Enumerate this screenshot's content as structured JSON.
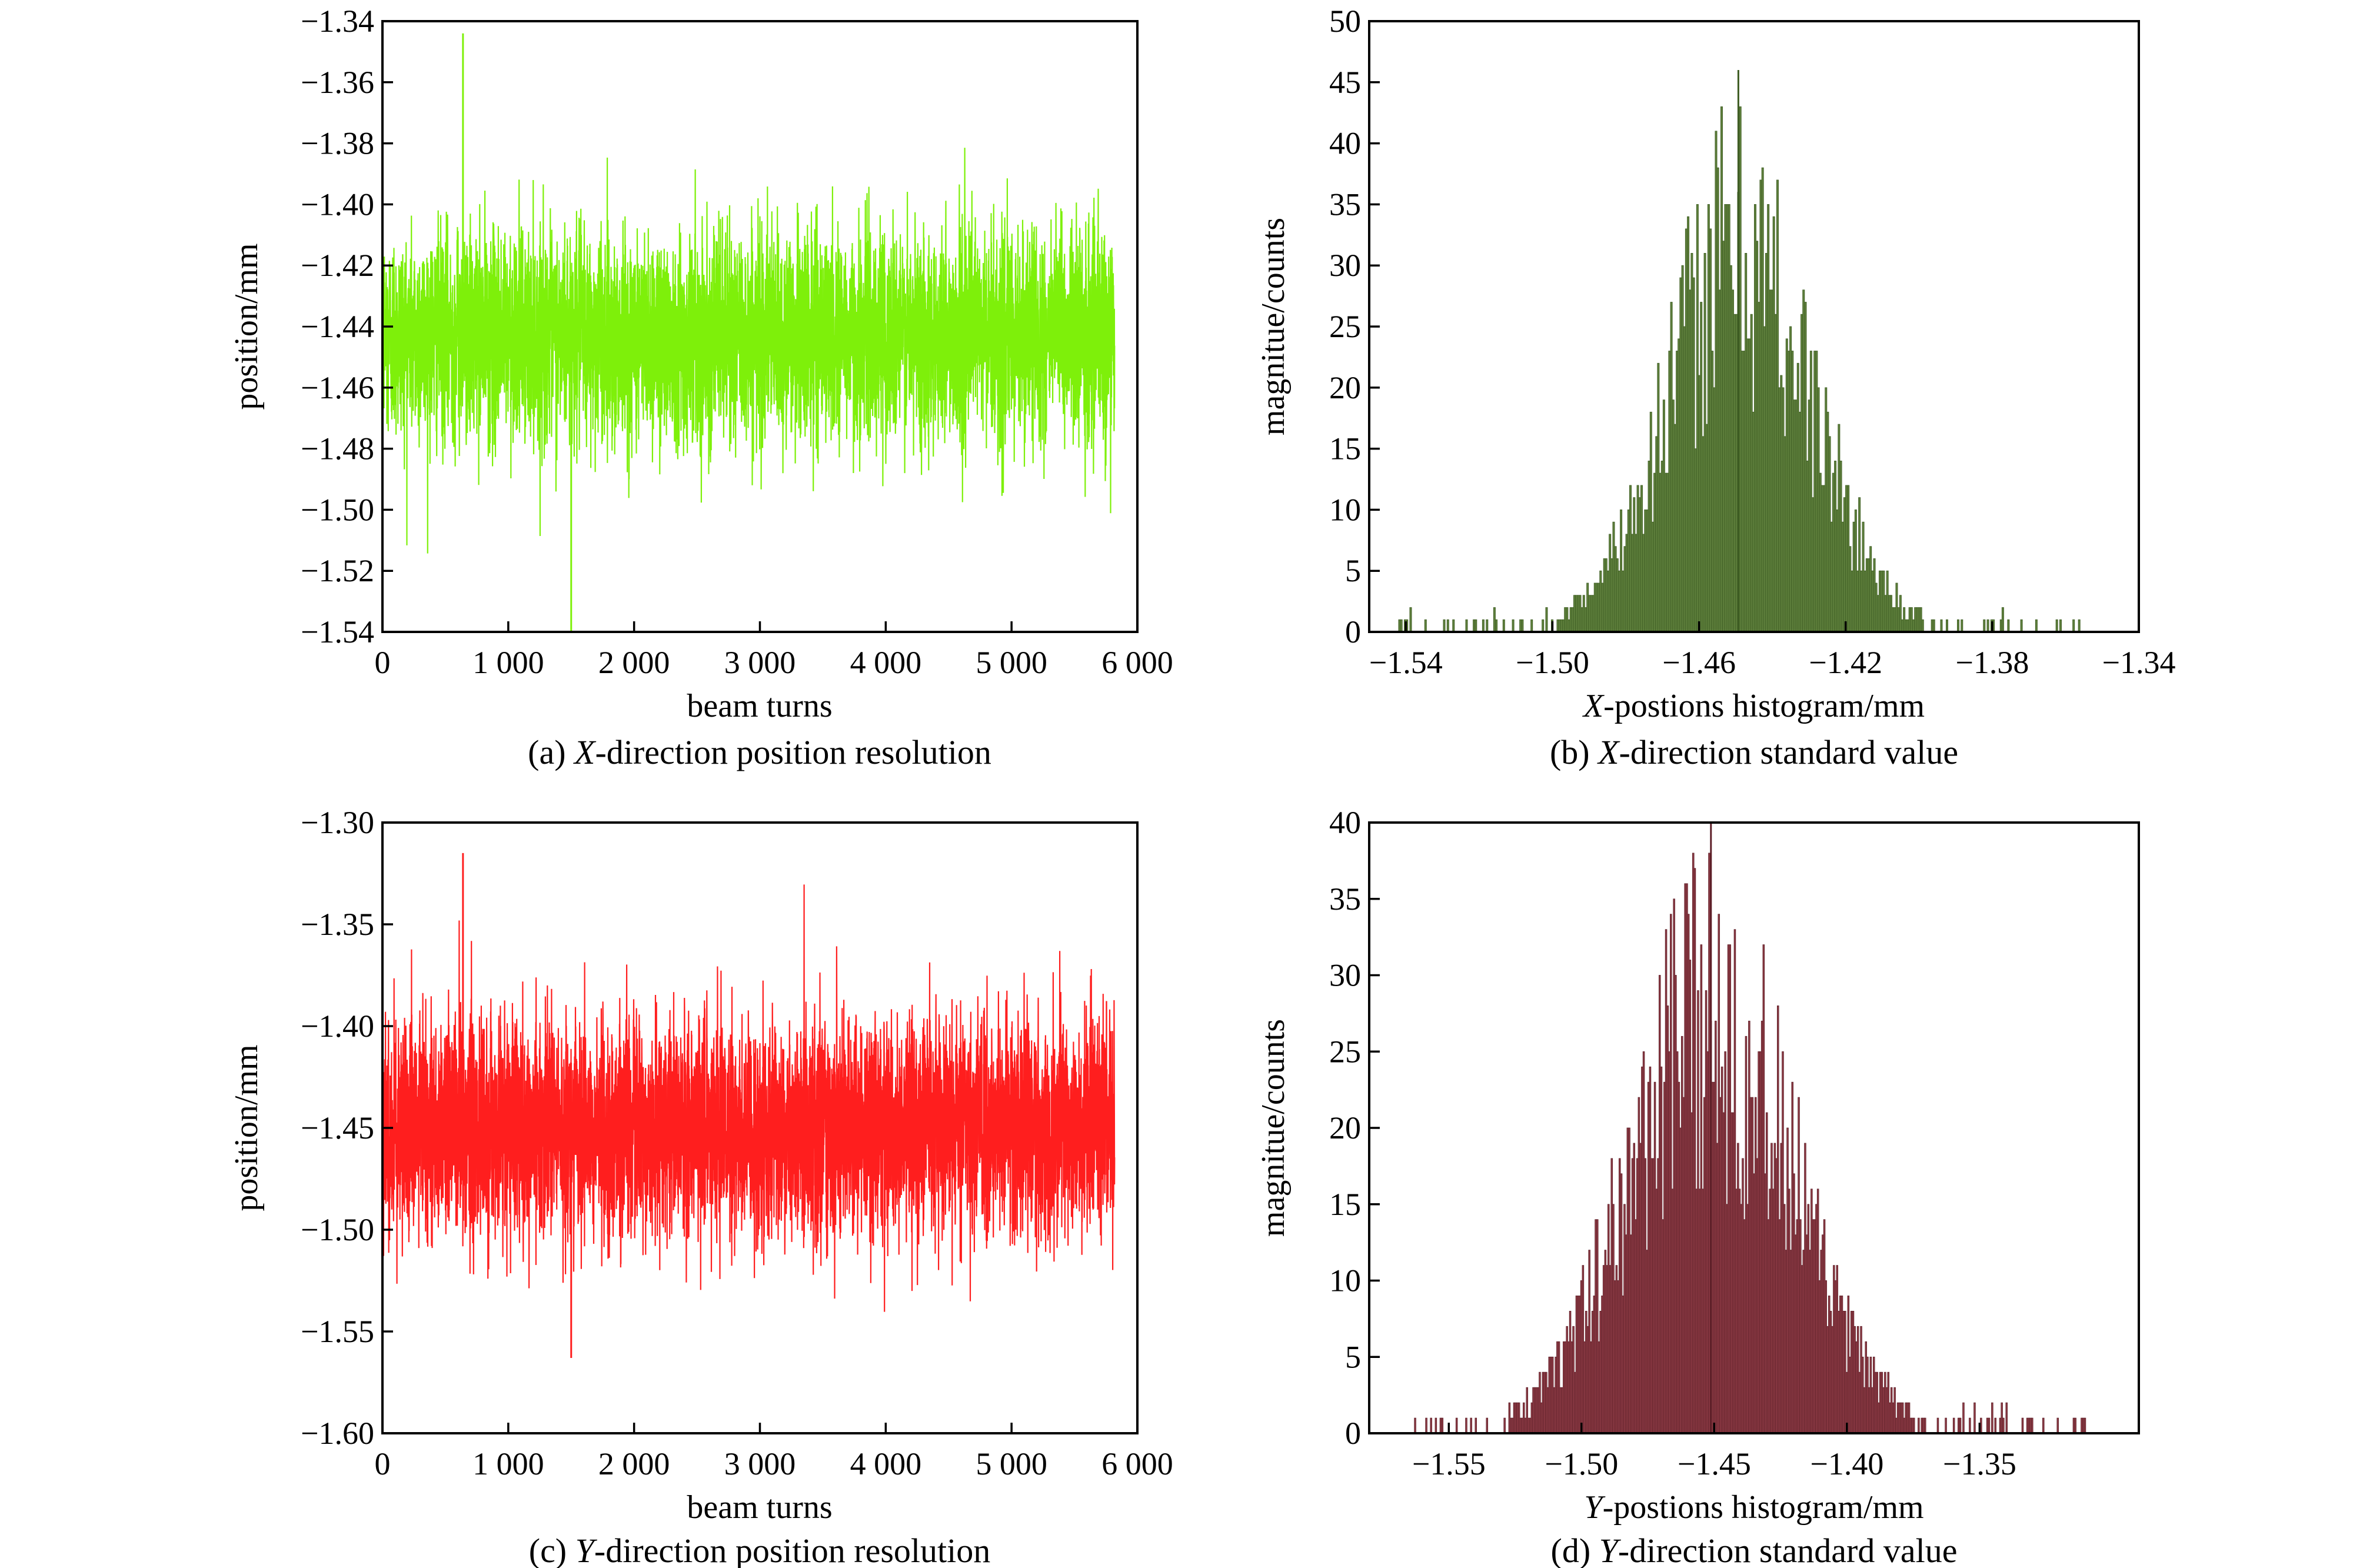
{
  "figure": {
    "panels": [
      {
        "id": "a",
        "caption_prefix": "(a) ",
        "caption_var": "X",
        "caption_suffix": "-direction position resolution"
      },
      {
        "id": "b",
        "caption_prefix": "(b) ",
        "caption_var": "X",
        "caption_suffix": "-direction standard value"
      },
      {
        "id": "c",
        "caption_prefix": "(c) ",
        "caption_var": "Y",
        "caption_suffix": "-direction position resolution"
      },
      {
        "id": "d",
        "caption_prefix": "(d) ",
        "caption_var": "Y",
        "caption_suffix": "-direction standard value"
      }
    ]
  },
  "chart_data": [
    {
      "id": "a",
      "type": "line",
      "xlabel": "beam turns",
      "ylabel": "position/mm",
      "xlim": [
        0,
        6000
      ],
      "ylim": [
        -1.54,
        -1.34
      ],
      "xticks": [
        0,
        1000,
        2000,
        3000,
        4000,
        5000,
        6000
      ],
      "xtick_labels": [
        "0",
        "1 000",
        "2 000",
        "3 000",
        "4 000",
        "5 000",
        "6 000"
      ],
      "yticks": [
        -1.34,
        -1.36,
        -1.38,
        -1.4,
        -1.42,
        -1.44,
        -1.46,
        -1.48,
        -1.5,
        -1.52,
        -1.54
      ],
      "ytick_labels": [
        "−1.34",
        "−1.36",
        "−1.38",
        "−1.40",
        "−1.42",
        "−1.44",
        "−1.46",
        "−1.48",
        "−1.50",
        "−1.52",
        "−1.54"
      ],
      "n_points": 5820,
      "mean": -1.443,
      "std": 0.017,
      "max": -1.344,
      "min": -1.54,
      "color": "#7ef00a",
      "grid": false
    },
    {
      "id": "b",
      "type": "bar",
      "xlabel_var": "X",
      "xlabel": "-postions histogram/mm",
      "ylabel": "magnitue/counts",
      "xlim": [
        -1.55,
        -1.34
      ],
      "ylim": [
        0,
        50
      ],
      "xticks": [
        -1.54,
        -1.5,
        -1.46,
        -1.42,
        -1.38,
        -1.34
      ],
      "xtick_labels": [
        "−1.54",
        "−1.50",
        "−1.46",
        "−1.42",
        "−1.38",
        "−1.34"
      ],
      "yticks": [
        0,
        5,
        10,
        15,
        20,
        25,
        30,
        35,
        40,
        45,
        50
      ],
      "ytick_labels": [
        "0",
        "5",
        "10",
        "15",
        "20",
        "25",
        "30",
        "35",
        "40",
        "45",
        "50"
      ],
      "bin_range": [
        -1.543,
        -1.355
      ],
      "n_bins": 370,
      "center": -1.449,
      "sigma": 0.0195,
      "peak_count": 32,
      "max_count": 46,
      "color": "#5e7f3c",
      "edge_color": "#3d5c22",
      "grid": false
    },
    {
      "id": "c",
      "type": "line",
      "xlabel": "beam turns",
      "ylabel": "position/mm",
      "xlim": [
        0,
        6000
      ],
      "ylim": [
        -1.6,
        -1.3
      ],
      "xticks": [
        0,
        1000,
        2000,
        3000,
        4000,
        5000,
        6000
      ],
      "xtick_labels": [
        "0",
        "1 000",
        "2 000",
        "3 000",
        "4 000",
        "5 000",
        "6 000"
      ],
      "yticks": [
        -1.3,
        -1.35,
        -1.4,
        -1.45,
        -1.5,
        -1.55,
        -1.6
      ],
      "ytick_labels": [
        "−1.30",
        "−1.35",
        "−1.40",
        "−1.45",
        "−1.50",
        "−1.55",
        "−1.60"
      ],
      "n_points": 5820,
      "mean": -1.45,
      "std": 0.027,
      "max": -1.315,
      "min": -1.563,
      "color": "#ff1e1e",
      "grid": false
    },
    {
      "id": "d",
      "type": "bar",
      "xlabel_var": "Y",
      "xlabel": "-postions histogram/mm",
      "ylabel": "magnitue/counts",
      "xlim": [
        -1.58,
        -1.29
      ],
      "ylim": [
        0,
        40
      ],
      "xticks": [
        -1.55,
        -1.5,
        -1.45,
        -1.4,
        -1.35
      ],
      "xtick_labels": [
        "−1.55",
        "−1.50",
        "−1.45",
        "−1.40",
        "−1.35"
      ],
      "yticks": [
        0,
        5,
        10,
        15,
        20,
        25,
        30,
        35,
        40
      ],
      "ytick_labels": [
        "0",
        "5",
        "10",
        "15",
        "20",
        "25",
        "30",
        "35",
        "40"
      ],
      "bin_range": [
        -1.563,
        -1.31
      ],
      "n_bins": 420,
      "center": -1.451,
      "sigma": 0.0305,
      "peak_count": 28,
      "max_count": 40,
      "color": "#8b3a44",
      "edge_color": "#5e2029",
      "grid": false
    }
  ]
}
